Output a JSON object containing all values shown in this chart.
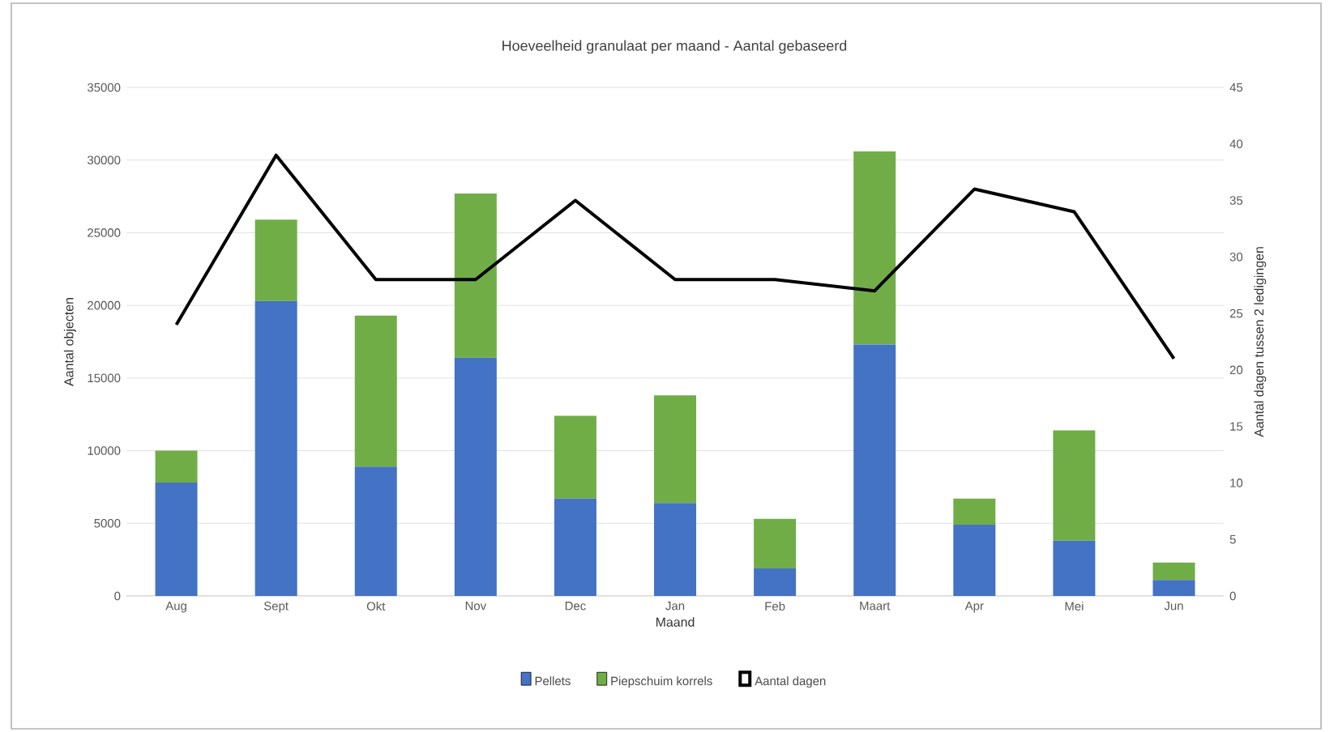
{
  "chart_data": {
    "type": "bar",
    "title": "Hoeveelheid granulaat per maand -  Aantal gebaseerd",
    "xlabel": "Maand",
    "ylabel": "Aantal objecten",
    "y2label": "Aantal dagen tussen 2 ledigingen",
    "categories": [
      "Aug",
      "Sept",
      "Okt",
      "Nov",
      "Dec",
      "Jan",
      "Feb",
      "Maart",
      "Apr",
      "Mei",
      "Jun"
    ],
    "stacked": true,
    "series": [
      {
        "name": "Pellets",
        "color": "#4472c4",
        "values": [
          7800,
          20300,
          8900,
          16400,
          6700,
          6400,
          1900,
          17300,
          4900,
          3800,
          1100
        ]
      },
      {
        "name": "Piepschuim korrels",
        "color": "#70ad47",
        "values": [
          2200,
          5600,
          10400,
          11300,
          5700,
          7400,
          3400,
          13300,
          1800,
          7600,
          1200
        ]
      },
      {
        "name": "Aantal dagen",
        "color": "#000000",
        "type": "line",
        "axis": "y2",
        "values": [
          24,
          39,
          28,
          28,
          35,
          28,
          28,
          27,
          36,
          34,
          21
        ]
      }
    ],
    "ylim": [
      0,
      35000
    ],
    "yticks": [
      0,
      5000,
      10000,
      15000,
      20000,
      25000,
      30000,
      35000
    ],
    "y2lim": [
      0,
      45
    ],
    "y2ticks": [
      0,
      5,
      10,
      15,
      20,
      25,
      30,
      35,
      40,
      45
    ],
    "grid": "y",
    "legend": "bottom"
  }
}
